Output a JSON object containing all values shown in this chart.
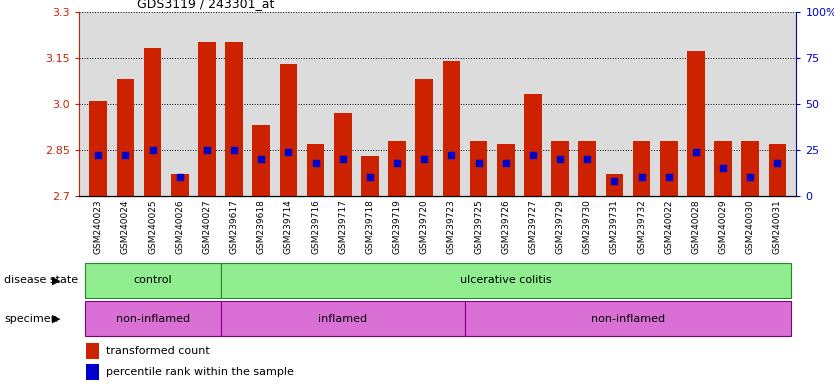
{
  "title": "GDS3119 / 243301_at",
  "samples": [
    "GSM240023",
    "GSM240024",
    "GSM240025",
    "GSM240026",
    "GSM240027",
    "GSM239617",
    "GSM239618",
    "GSM239714",
    "GSM239716",
    "GSM239717",
    "GSM239718",
    "GSM239719",
    "GSM239720",
    "GSM239723",
    "GSM239725",
    "GSM239726",
    "GSM239727",
    "GSM239729",
    "GSM239730",
    "GSM239731",
    "GSM239732",
    "GSM240022",
    "GSM240028",
    "GSM240029",
    "GSM240030",
    "GSM240031"
  ],
  "transformed_count": [
    3.01,
    3.08,
    3.18,
    2.77,
    3.2,
    3.2,
    2.93,
    3.13,
    2.87,
    2.97,
    2.83,
    2.88,
    3.08,
    3.14,
    2.88,
    2.87,
    3.03,
    2.88,
    2.88,
    2.77,
    2.88,
    2.88,
    3.17,
    2.88,
    2.88,
    2.87
  ],
  "percentile_rank": [
    22,
    22,
    25,
    10,
    25,
    25,
    20,
    24,
    18,
    20,
    10,
    18,
    20,
    22,
    18,
    18,
    22,
    20,
    20,
    8,
    10,
    10,
    24,
    15,
    10,
    18
  ],
  "ylim_left": [
    2.7,
    3.3
  ],
  "ylim_right": [
    0,
    100
  ],
  "yticks_left": [
    2.7,
    2.85,
    3.0,
    3.15,
    3.3
  ],
  "yticks_right": [
    0,
    25,
    50,
    75,
    100
  ],
  "bar_color": "#cc2200",
  "dot_color": "#0000cc",
  "disease_state": {
    "control": [
      0,
      5
    ],
    "ulcerative_colitis": [
      5,
      26
    ]
  },
  "specimen": {
    "non_inflamed_1": [
      0,
      5
    ],
    "inflamed": [
      5,
      14
    ],
    "non_inflamed_2": [
      14,
      26
    ]
  },
  "green_color": "#90ee90",
  "green_edge": "#228B22",
  "purple_color": "#da70d6",
  "purple_edge": "#800080",
  "plot_bg": "#dcdcdc"
}
